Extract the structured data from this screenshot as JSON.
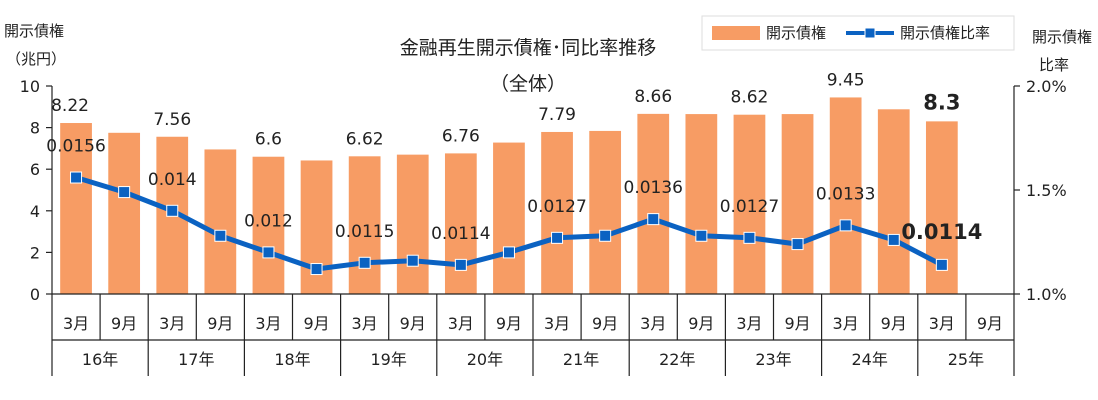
{
  "chart_data": {
    "type": "bar",
    "title": "金融再生開示債権･同比率推移",
    "subtitle": "（全体）",
    "left_axis_label_line1": "開示債権",
    "left_axis_label_line2": "（兆円）",
    "right_axis_label_line1": "開示債権",
    "right_axis_label_line2": "比率",
    "left_ylim": [
      0,
      10
    ],
    "left_ticks": [
      "0",
      "2",
      "4",
      "6",
      "8",
      "10"
    ],
    "right_ylim": [
      0.01,
      0.02
    ],
    "right_ticks": [
      "1.0%",
      "1.5%",
      "2.0%"
    ],
    "months": [
      "3月",
      "9月",
      "3月",
      "9月",
      "3月",
      "9月",
      "3月",
      "9月",
      "3月",
      "9月",
      "3月",
      "9月",
      "3月",
      "9月",
      "3月",
      "9月",
      "3月",
      "9月",
      "3月",
      "9月"
    ],
    "years": [
      "16年",
      "17年",
      "18年",
      "19年",
      "20年",
      "21年",
      "22年",
      "23年",
      "24年",
      "25年"
    ],
    "series": [
      {
        "name": "開示債権",
        "kind": "bar",
        "color": "#F79C64",
        "values": [
          8.22,
          7.75,
          7.56,
          6.95,
          6.6,
          6.42,
          6.62,
          6.7,
          6.76,
          7.28,
          7.79,
          7.84,
          8.66,
          8.65,
          8.62,
          8.65,
          9.45,
          8.88,
          8.3,
          null
        ],
        "labels": [
          "8.22",
          "",
          "7.56",
          "",
          "6.6",
          "",
          "6.62",
          "",
          "6.76",
          "",
          "7.79",
          "",
          "8.66",
          "",
          "8.62",
          "",
          "9.45",
          "",
          "8.3",
          ""
        ]
      },
      {
        "name": "開示債権比率",
        "kind": "line",
        "color": "#0B62C2",
        "values": [
          0.0156,
          0.0149,
          0.014,
          0.0128,
          0.012,
          0.0112,
          0.0115,
          0.0116,
          0.0114,
          0.012,
          0.0127,
          0.0128,
          0.0136,
          0.0128,
          0.0127,
          0.0124,
          0.0133,
          0.0126,
          0.0114,
          null
        ],
        "labels": [
          "0.0156",
          "",
          "0.014",
          "",
          "0.012",
          "",
          "0.0115",
          "",
          "0.0114",
          "",
          "0.0127",
          "",
          "0.0136",
          "",
          "0.0127",
          "",
          "0.0133",
          "",
          "0.0114",
          ""
        ]
      }
    ],
    "legend_position": "top-right"
  }
}
